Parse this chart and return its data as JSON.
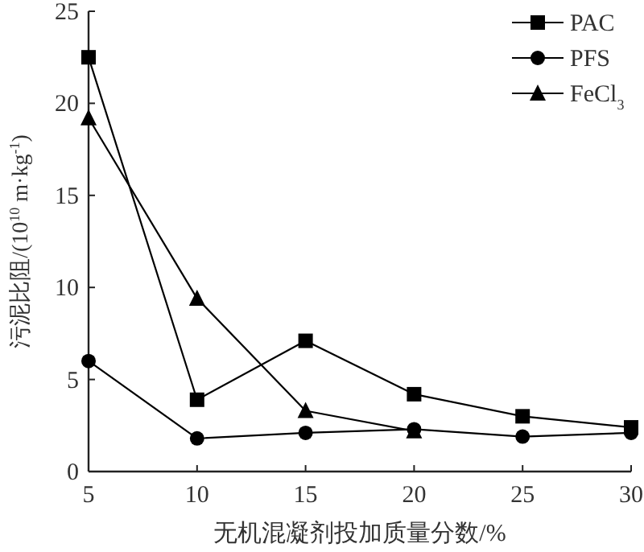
{
  "chart_data": {
    "type": "line",
    "xlabel": "无机混凝剂投加质量分数/%",
    "ylabel": "污泥比阻/(10$^{10}$ m·kg$^{-1}$)",
    "x": [
      5,
      10,
      15,
      20,
      25,
      30
    ],
    "series": [
      {
        "name": "PAC",
        "color": "#000000",
        "marker": "square",
        "values": [
          22.5,
          3.9,
          7.1,
          4.2,
          3.0,
          2.4
        ]
      },
      {
        "name": "PFS",
        "color": "#000000",
        "marker": "circle",
        "values": [
          6.0,
          1.8,
          2.1,
          2.3,
          1.9,
          2.1
        ]
      },
      {
        "name": "FeCl$_{3}$",
        "color": "#000000",
        "marker": "triangle",
        "values": [
          19.2,
          9.4,
          3.3,
          2.2,
          null,
          null
        ]
      }
    ],
    "xlim": [
      5,
      30
    ],
    "ylim": [
      0,
      25
    ],
    "xticks": [
      5,
      10,
      15,
      20,
      25,
      30
    ],
    "yticks": [
      0,
      5,
      10,
      15,
      20,
      25
    ],
    "legend": "top right",
    "grid": false,
    "line_style": "solid"
  }
}
